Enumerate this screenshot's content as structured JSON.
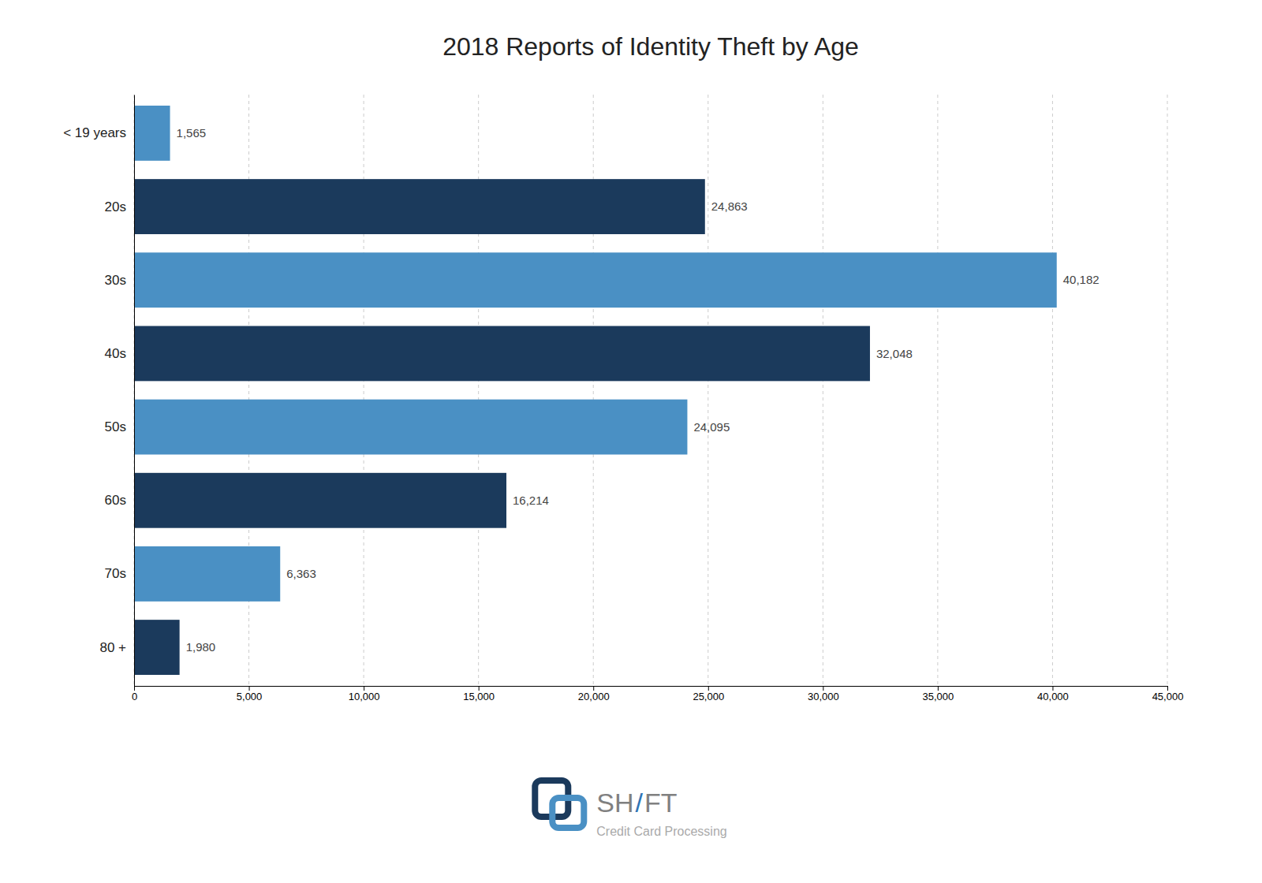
{
  "chart_data": {
    "type": "bar",
    "orientation": "horizontal",
    "title": "2018 Reports of Identity Theft by Age",
    "categories": [
      "< 19 years",
      "20s",
      "30s",
      "40s",
      "50s",
      "60s",
      "70s",
      "80 +"
    ],
    "values": [
      1565,
      24863,
      40182,
      32048,
      24095,
      16214,
      6363,
      1980
    ],
    "value_labels": [
      "1,565",
      "24,863",
      "40,182",
      "32,048",
      "24,095",
      "16,214",
      "6,363",
      "1,980"
    ],
    "data_labels": true,
    "colors": [
      "#4a90c4",
      "#1b3a5c",
      "#4a90c4",
      "#1b3a5c",
      "#4a90c4",
      "#1b3a5c",
      "#4a90c4",
      "#1b3a5c"
    ],
    "xlim": [
      0,
      45000
    ],
    "xticks": [
      0,
      {
        "value": 5000,
        "label": "5,000"
      },
      {
        "value": 10000,
        "label": "10,000"
      },
      {
        "value": 15000,
        "label": "15,000"
      },
      {
        "value": 20000,
        "label": "20,000"
      },
      {
        "value": 25000,
        "label": "25,000"
      },
      {
        "value": 30000,
        "label": "30,000"
      },
      {
        "value": 35000,
        "label": "35,000"
      },
      {
        "value": 40000,
        "label": "40,000"
      },
      {
        "value": 45000,
        "label": "45,000"
      }
    ],
    "grid": true,
    "annotations": [
      "SH",
      "/",
      "FT",
      "Credit Card Processing"
    ]
  }
}
